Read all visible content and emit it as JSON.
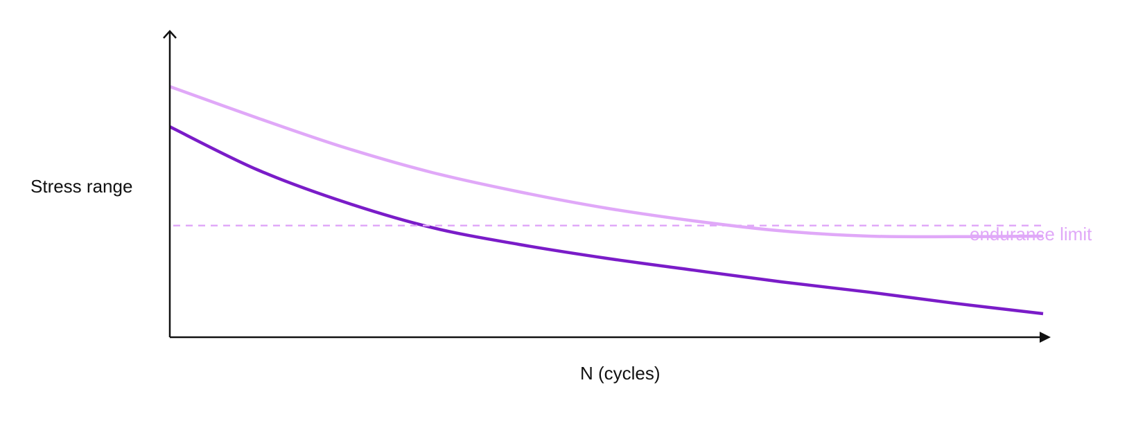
{
  "chart_data": {
    "type": "line",
    "title": "",
    "xlabel": "N (cycles)",
    "ylabel": "Stress range",
    "xlim": [
      0,
      100
    ],
    "ylim": [
      0,
      100
    ],
    "ticks": false,
    "grid": false,
    "series": [
      {
        "color": "#e0a8f8",
        "x": [
          0,
          10,
          20,
          30,
          40,
          50,
          60,
          70,
          80,
          90,
          100
        ],
        "y": [
          90.5,
          79.2,
          68.5,
          59.5,
          52.5,
          46.6,
          42.0,
          38.4,
          36.5,
          36.3,
          36.5
        ]
      },
      {
        "color": "#7a1cc8",
        "x": [
          0,
          10,
          20,
          30,
          40,
          50,
          60,
          70,
          80,
          90,
          100
        ],
        "y": [
          76.0,
          60.5,
          48.8,
          39.6,
          33.5,
          28.5,
          24.2,
          20.0,
          16.3,
          12.2,
          8.5
        ]
      }
    ],
    "annotations": [
      {
        "text": "endurance limit",
        "type": "hline",
        "y": 40.3,
        "color": "#e0a8f8",
        "style": "dashed"
      }
    ]
  },
  "colors": {
    "axis": "#111111"
  }
}
